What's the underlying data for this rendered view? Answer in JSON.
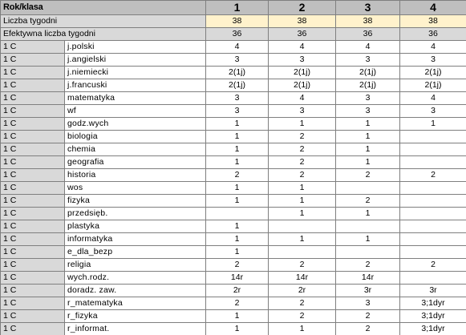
{
  "header": {
    "corner": "Rok/klasa",
    "years": [
      "1",
      "2",
      "3",
      "4"
    ]
  },
  "summary": [
    {
      "label": "Liczba tygodni",
      "values": [
        "38",
        "38",
        "38",
        "38"
      ]
    },
    {
      "label": "Efektywna liczba tygodni",
      "values": [
        "36",
        "36",
        "36",
        "36"
      ]
    }
  ],
  "rows": [
    {
      "klasa": "1 C",
      "subject": "j.polski",
      "values": [
        "4",
        "4",
        "4",
        "4"
      ]
    },
    {
      "klasa": "1 C",
      "subject": "j.angielski",
      "values": [
        "3",
        "3",
        "3",
        "3"
      ]
    },
    {
      "klasa": "1 C",
      "subject": "j.niemiecki",
      "values": [
        "2(1j)",
        "2(1j)",
        "2(1j)",
        "2(1j)"
      ]
    },
    {
      "klasa": "1 C",
      "subject": "j.francuski",
      "values": [
        "2(1j)",
        "2(1j)",
        "2(1j)",
        "2(1j)"
      ]
    },
    {
      "klasa": "1 C",
      "subject": "matematyka",
      "values": [
        "3",
        "4",
        "3",
        "4"
      ]
    },
    {
      "klasa": "1 C",
      "subject": "wf",
      "values": [
        "3",
        "3",
        "3",
        "3"
      ]
    },
    {
      "klasa": "1 C",
      "subject": "godz.wych",
      "values": [
        "1",
        "1",
        "1",
        "1"
      ]
    },
    {
      "klasa": "1 C",
      "subject": "biologia",
      "values": [
        "1",
        "2",
        "1",
        ""
      ]
    },
    {
      "klasa": "1 C",
      "subject": "chemia",
      "values": [
        "1",
        "2",
        "1",
        ""
      ]
    },
    {
      "klasa": "1 C",
      "subject": "geografia",
      "values": [
        "1",
        "2",
        "1",
        ""
      ]
    },
    {
      "klasa": "1 C",
      "subject": "historia",
      "values": [
        "2",
        "2",
        "2",
        "2"
      ]
    },
    {
      "klasa": "1 C",
      "subject": "wos",
      "values": [
        "1",
        "1",
        "",
        ""
      ]
    },
    {
      "klasa": "1 C",
      "subject": "fizyka",
      "values": [
        "1",
        "1",
        "2",
        ""
      ]
    },
    {
      "klasa": "1 C",
      "subject": "przedsięb.",
      "values": [
        "",
        "1",
        "1",
        ""
      ]
    },
    {
      "klasa": "1 C",
      "subject": "plastyka",
      "values": [
        "1",
        "",
        "",
        ""
      ]
    },
    {
      "klasa": "1 C",
      "subject": "informatyka",
      "values": [
        "1",
        "1",
        "1",
        ""
      ]
    },
    {
      "klasa": "1 C",
      "subject": "e_dla_bezp",
      "values": [
        "1",
        "",
        "",
        ""
      ]
    },
    {
      "klasa": "1 C",
      "subject": "religia",
      "values": [
        "2",
        "2",
        "2",
        "2"
      ]
    },
    {
      "klasa": "1 C",
      "subject": "wych.rodz.",
      "values": [
        "14r",
        "14r",
        "14r",
        ""
      ]
    },
    {
      "klasa": "1 C",
      "subject": "doradz. zaw.",
      "values": [
        "2r",
        "2r",
        "3r",
        "3r"
      ]
    },
    {
      "klasa": "1 C",
      "subject": "r_matematyka",
      "values": [
        "2",
        "2",
        "3",
        "3;1dyr"
      ]
    },
    {
      "klasa": "1 C",
      "subject": "r_fizyka",
      "values": [
        "1",
        "2",
        "2",
        "3;1dyr"
      ]
    },
    {
      "klasa": "1 C",
      "subject": "r_informat.",
      "values": [
        "1",
        "1",
        "2",
        "3;1dyr"
      ]
    }
  ],
  "colors": {
    "header_bg": "#bfbfbf",
    "label_bg": "#d9d9d9",
    "summary_value_bg": "#fff2cc",
    "cell_bg": "#ffffff",
    "grid": "#7f7f7f"
  }
}
